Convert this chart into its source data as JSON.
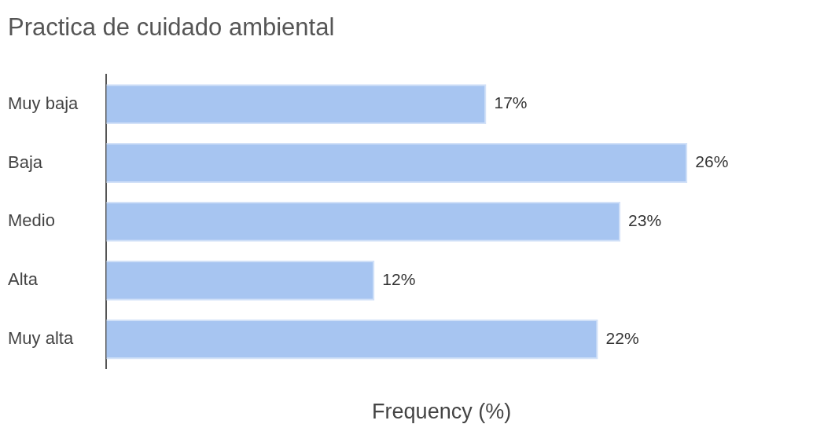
{
  "chart_data": {
    "type": "bar",
    "orientation": "horizontal",
    "title": "Practica de cuidado ambiental",
    "xlabel": "Frequency (%)",
    "categories": [
      "Muy baja",
      "Baja",
      "Medio",
      "Alta",
      "Muy alta"
    ],
    "values": [
      17,
      26,
      23,
      12,
      22
    ],
    "value_labels": [
      "17%",
      "26%",
      "23%",
      "12%",
      "22%"
    ],
    "color": "#a7c5f1",
    "grid": false,
    "legend": false,
    "tick_labels": "y"
  }
}
